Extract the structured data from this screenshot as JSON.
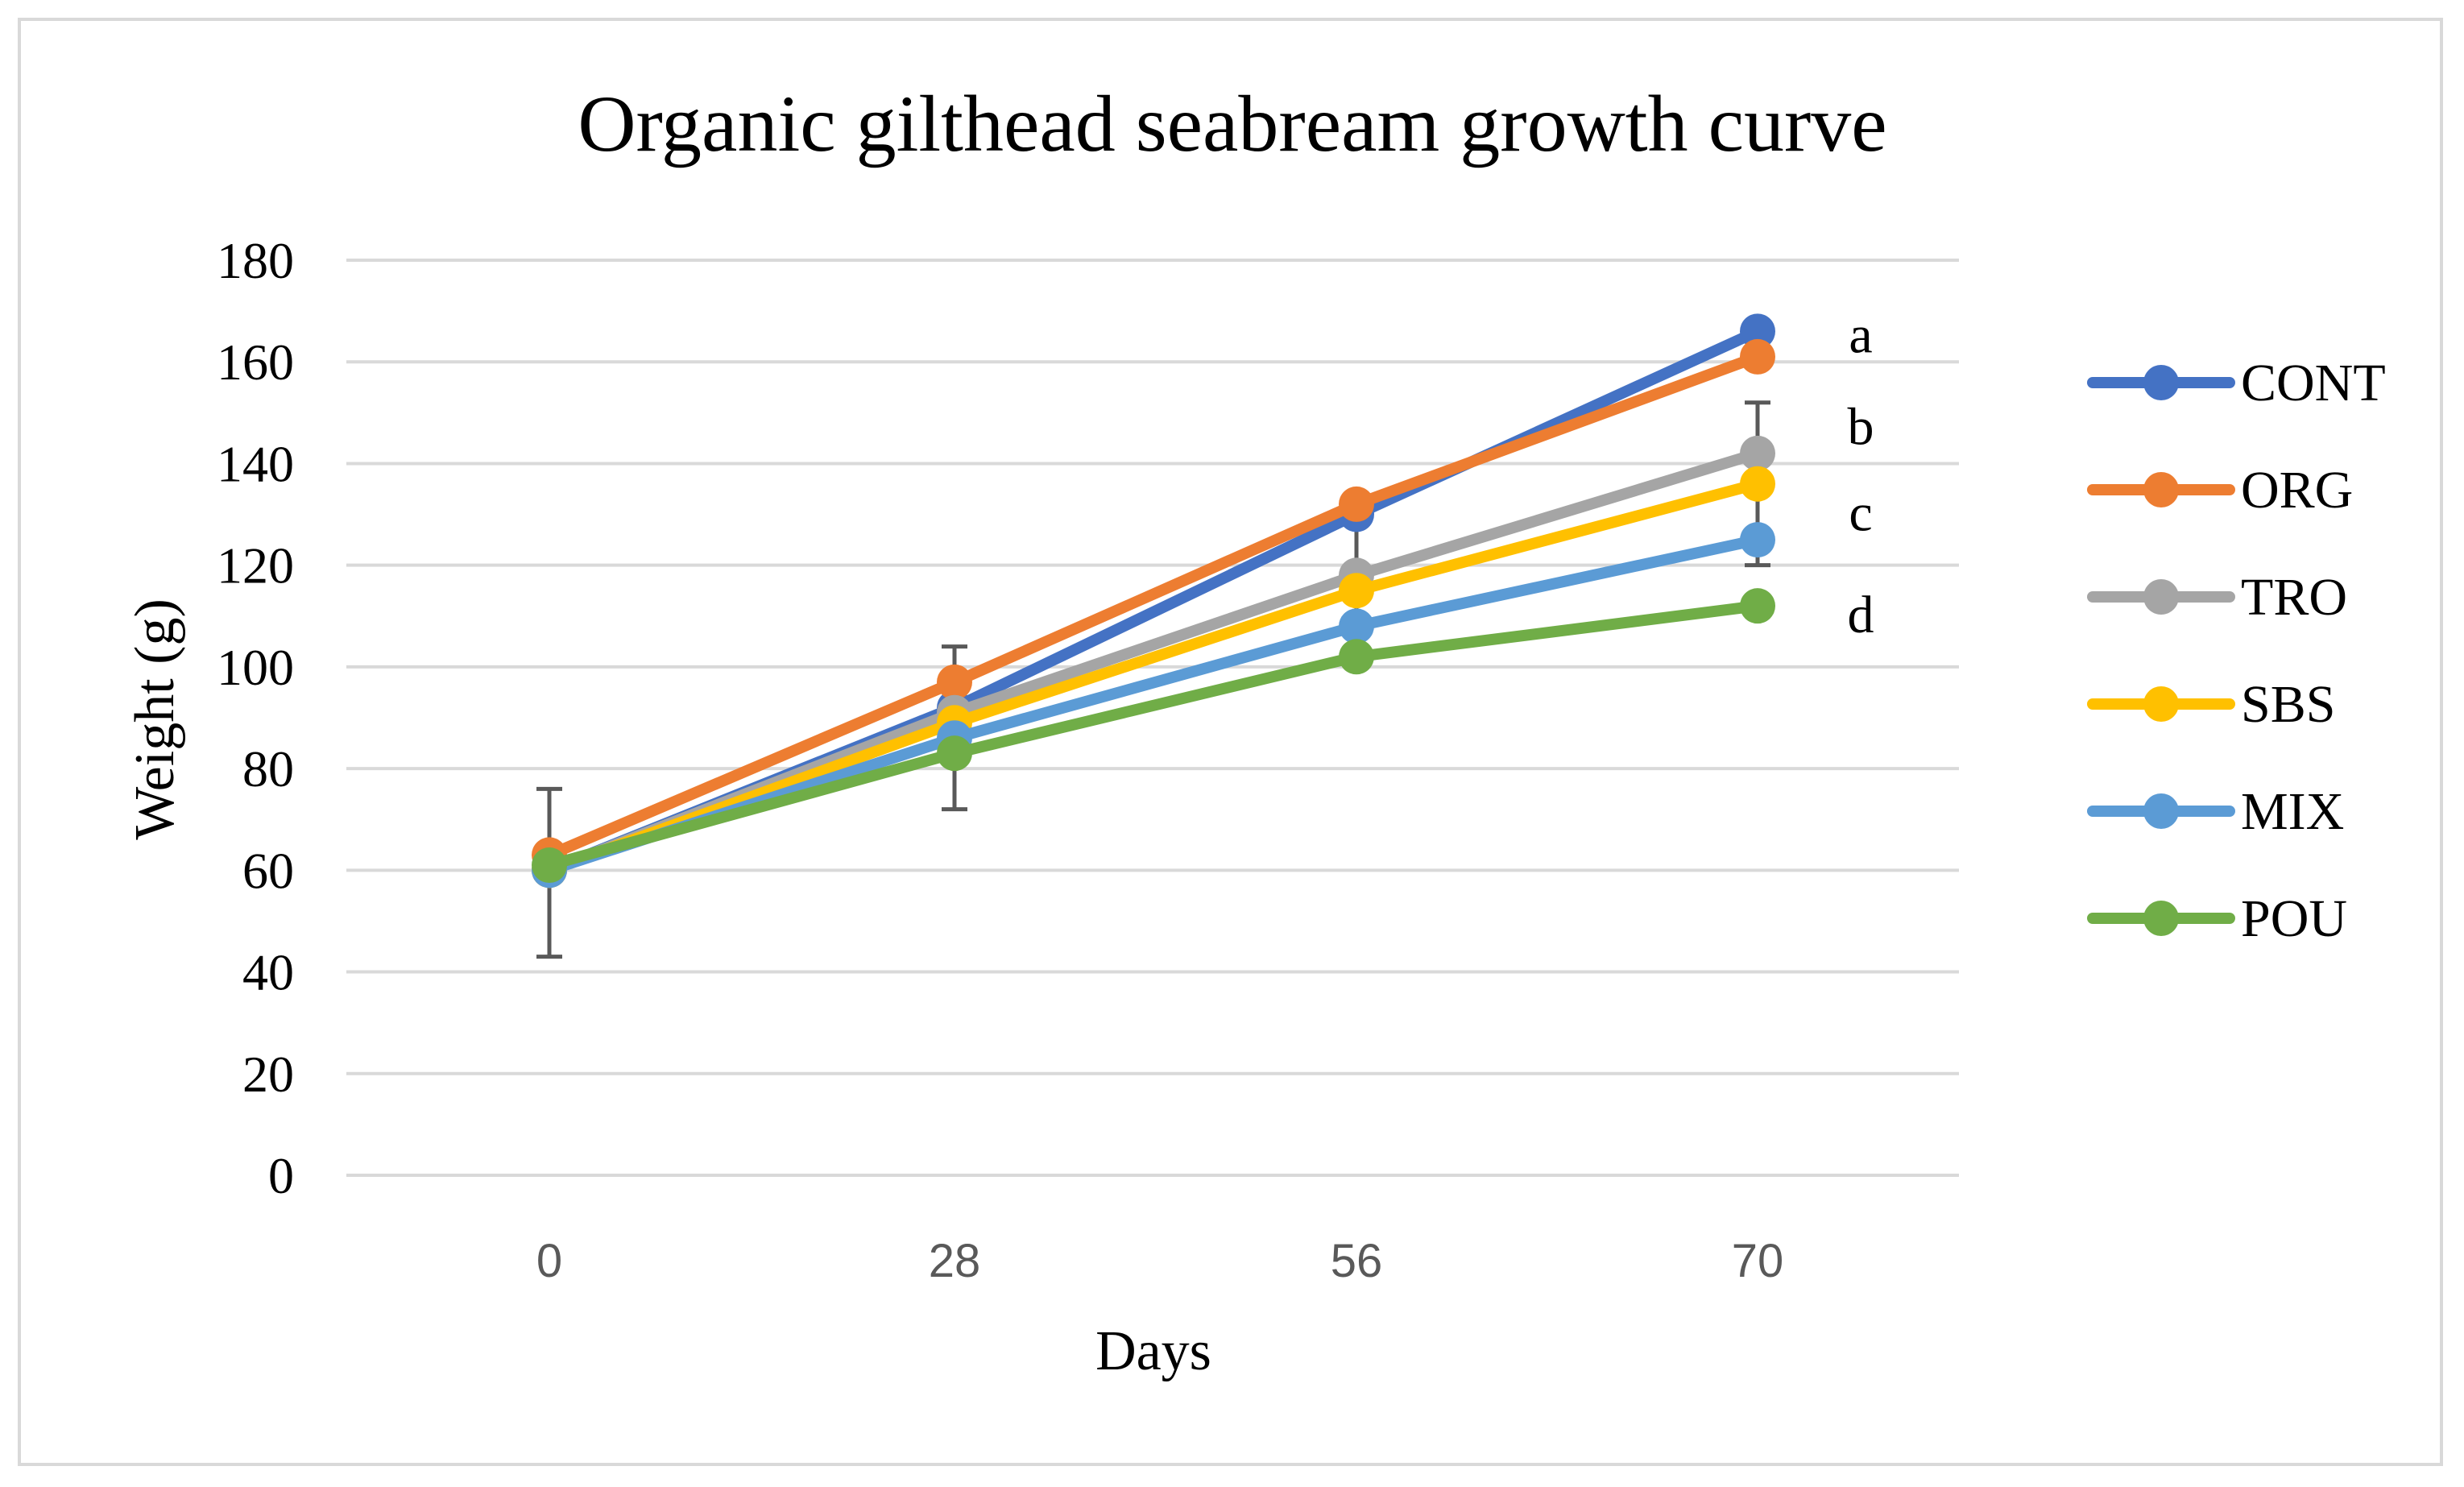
{
  "chart_data": {
    "type": "line",
    "title": "Organic gilthead seabream growth curve",
    "xlabel": "Days",
    "ylabel": "Weight (g)",
    "categories": [
      "0",
      "28",
      "56",
      "70"
    ],
    "ylim": [
      0,
      180
    ],
    "yticks": [
      0,
      20,
      40,
      60,
      80,
      100,
      120,
      140,
      160,
      180
    ],
    "grid": true,
    "legend_position": "right",
    "series": [
      {
        "name": "CONT",
        "color": "#4472c4",
        "values": [
          60,
          92,
          130,
          166
        ]
      },
      {
        "name": "ORG",
        "color": "#ed7d31",
        "values": [
          63,
          97,
          132,
          161
        ]
      },
      {
        "name": "TRO",
        "color": "#a5a5a5",
        "values": [
          60,
          91,
          118,
          142
        ]
      },
      {
        "name": "SBS",
        "color": "#ffc000",
        "values": [
          60,
          89,
          115,
          136
        ]
      },
      {
        "name": "MIX",
        "color": "#5b9bd5",
        "values": [
          60,
          86,
          108,
          125
        ]
      },
      {
        "name": "POU",
        "color": "#70ad47",
        "values": [
          61,
          83,
          102,
          112
        ]
      }
    ],
    "error_bars": [
      {
        "category": "0",
        "low": 43,
        "high": 76
      },
      {
        "category": "28",
        "low": 72,
        "high": 104
      },
      {
        "category": "56",
        "low": 100,
        "high": 130
      },
      {
        "category": "70",
        "low": 120,
        "high": 152
      }
    ],
    "annotations": [
      {
        "text": "a",
        "y": 165
      },
      {
        "text": "b",
        "y": 147
      },
      {
        "text": "c",
        "y": 130
      },
      {
        "text": "d",
        "y": 110
      }
    ]
  }
}
